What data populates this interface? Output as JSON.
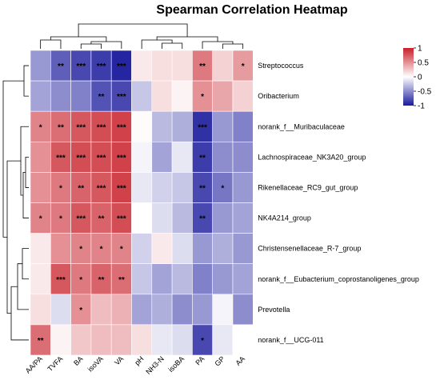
{
  "chart_data": {
    "type": "heatmap",
    "title": "Spearman Correlation Heatmap",
    "columns": [
      "AA/PA",
      "TVFA",
      "BA",
      "isoVA",
      "VA",
      "pH",
      "NH3-N",
      "isoBA",
      "PA",
      "GP",
      "AA"
    ],
    "rows": [
      "Streptococcus",
      "Oribacterium",
      "norank_f__Muribaculaceae",
      "Lachnospiraceae_NK3A20_group",
      "Rikenellaceae_RC9_gut_group",
      "NK4A214_group",
      "Christensenellaceae_R-7_group",
      "norank_f__Eubacterium_coprostanoligenes_group",
      "Prevotella",
      "norank_f__UCG-011"
    ],
    "values": [
      [
        -0.45,
        -0.7,
        -0.8,
        -0.85,
        -0.95,
        0.1,
        0.15,
        0.15,
        0.6,
        0.2,
        0.45
      ],
      [
        -0.4,
        -0.5,
        -0.55,
        -0.75,
        -0.8,
        -0.25,
        0.15,
        0.05,
        0.5,
        0.4,
        0.2
      ],
      [
        0.55,
        0.65,
        0.75,
        0.8,
        0.85,
        0.02,
        -0.3,
        -0.35,
        -0.9,
        -0.45,
        -0.55
      ],
      [
        0.5,
        0.75,
        0.8,
        0.8,
        0.85,
        -0.05,
        -0.4,
        -0.1,
        -0.85,
        -0.5,
        -0.5
      ],
      [
        0.5,
        0.6,
        0.7,
        0.75,
        0.85,
        -0.1,
        -0.2,
        -0.25,
        -0.8,
        -0.6,
        -0.45
      ],
      [
        0.55,
        0.6,
        0.75,
        0.7,
        0.8,
        0.0,
        -0.15,
        -0.3,
        -0.8,
        -0.45,
        -0.4
      ],
      [
        0.1,
        0.5,
        0.55,
        0.55,
        0.55,
        -0.2,
        0.1,
        -0.15,
        -0.45,
        -0.35,
        -0.45
      ],
      [
        0.1,
        0.75,
        0.6,
        0.7,
        0.65,
        -0.25,
        -0.4,
        -0.3,
        -0.55,
        -0.45,
        -0.4
      ],
      [
        0.15,
        -0.15,
        0.5,
        0.3,
        0.35,
        -0.4,
        -0.35,
        -0.5,
        -0.45,
        -0.05,
        -0.5
      ],
      [
        0.65,
        0.05,
        0.25,
        0.3,
        0.3,
        0.15,
        -0.1,
        -0.15,
        -0.8,
        -0.1,
        0.0
      ]
    ],
    "significance": [
      [
        "",
        "**",
        "***",
        "***",
        "***",
        "",
        "",
        "",
        "**",
        "",
        "*"
      ],
      [
        "",
        "",
        "",
        "**",
        "***",
        "",
        "",
        "",
        "*",
        "",
        ""
      ],
      [
        "*",
        "**",
        "***",
        "***",
        "***",
        "",
        "",
        "",
        "***",
        "",
        ""
      ],
      [
        "",
        "***",
        "***",
        "***",
        "***",
        "",
        "",
        "",
        "**",
        "",
        ""
      ],
      [
        "",
        "*",
        "**",
        "***",
        "***",
        "",
        "",
        "",
        "**",
        "*",
        ""
      ],
      [
        "*",
        "*",
        "***",
        "**",
        "***",
        "",
        "",
        "",
        "**",
        "",
        ""
      ],
      [
        "",
        "",
        "*",
        "*",
        "*",
        "",
        "",
        "",
        "",
        "",
        ""
      ],
      [
        "",
        "***",
        "*",
        "**",
        "**",
        "",
        "",
        "",
        "",
        "",
        ""
      ],
      [
        "",
        "",
        "*",
        "",
        "",
        "",
        "",
        "",
        "",
        "",
        ""
      ],
      [
        "**",
        "",
        "",
        "",
        "",
        "",
        "",
        "",
        "*",
        "",
        ""
      ]
    ],
    "color_scale": {
      "min": -1,
      "max": 1,
      "low": "#1a1a9c",
      "mid": "#ffffff",
      "high": "#c8202a"
    },
    "legend_ticks": [
      "1",
      "0.5",
      "0",
      "-0.5",
      "-1"
    ],
    "legend_placement": "top-right",
    "dendrograms": {
      "rows": true,
      "columns": true
    }
  }
}
